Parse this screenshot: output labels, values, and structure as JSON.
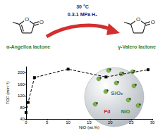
{
  "chart_data": {
    "type": "line",
    "x_label": "NiO (wt.%)",
    "y_label": "TOF (min⁻¹)",
    "x": [
      0,
      0.5,
      2,
      10,
      19,
      29
    ],
    "series": [
      {
        "name": "TOF",
        "color": "#000000",
        "values": [
          62,
          97,
          183,
          212,
          185,
          210
        ]
      }
    ],
    "xlim": [
      0,
      30
    ],
    "xticks": [
      0,
      5,
      10,
      15,
      20,
      25,
      30
    ],
    "ylim": [
      40,
      220
    ],
    "yticks": [
      40,
      80,
      120,
      160,
      200
    ],
    "marker": "square",
    "line_style": "dashed",
    "grid": false,
    "annotations": {
      "reactant": "α-Angelica lactone",
      "product": "γ-Valero lactone",
      "conditions": [
        "30 °C",
        "0.3-1 MPa H₂"
      ],
      "atom": "O",
      "support": "SiO₂",
      "metal": "Pd",
      "promoter": "NiO"
    }
  }
}
